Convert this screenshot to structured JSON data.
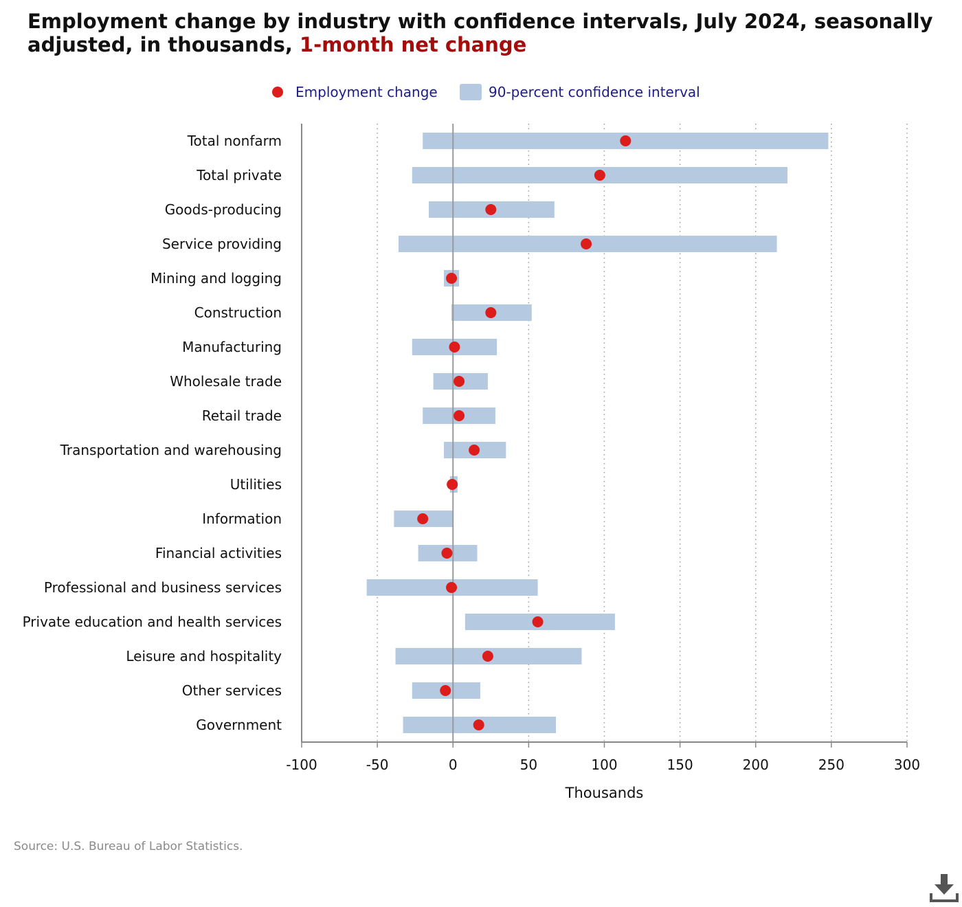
{
  "title": {
    "text": "Employment change by industry with confidence intervals, July 2024, seasonally adjusted, in thousands,",
    "highlight": "1-month net change"
  },
  "legend": {
    "point_label": "Employment change",
    "interval_label": "90-percent confidence interval"
  },
  "colors": {
    "point": "#dd1c1c",
    "interval": "#b5c9e0",
    "title_highlight": "#a50c0c",
    "legend_text": "#1c1c8a",
    "grid": "#9a9a9a",
    "axis": "#888888"
  },
  "chart_data": {
    "type": "dot-interval",
    "xlabel": "Thousands",
    "xlim": [
      -100,
      300
    ],
    "xticks": [
      -100,
      -50,
      0,
      50,
      100,
      150,
      200,
      250,
      300
    ],
    "grid": "vertical dotted",
    "legend_position": "top",
    "categories": [
      "Total nonfarm",
      "Total private",
      "Goods-producing",
      "Service providing",
      "Mining and logging",
      "Construction",
      "Manufacturing",
      "Wholesale trade",
      "Retail trade",
      "Transportation and warehousing",
      "Utilities",
      "Information",
      "Financial activities",
      "Professional and business services",
      "Private education and health services",
      "Leisure and hospitality",
      "Other services",
      "Government"
    ],
    "employment_change": [
      114,
      97,
      25,
      88,
      -1,
      25,
      1,
      4,
      4,
      14,
      -0.5,
      -20,
      -4,
      -1,
      56,
      23,
      -5,
      17
    ],
    "ci_low": [
      -20,
      -27,
      -16,
      -36,
      -6,
      -1,
      -27,
      -13,
      -20,
      -6,
      -2,
      -39,
      -23,
      -57,
      8,
      -38,
      -27,
      -33
    ],
    "ci_high": [
      248,
      221,
      67,
      214,
      4,
      52,
      29,
      23,
      28,
      35,
      3,
      0,
      16,
      56,
      107,
      85,
      18,
      68
    ]
  },
  "source": "Source: U.S. Bureau of Labor Statistics.",
  "download_icon": "download-icon"
}
